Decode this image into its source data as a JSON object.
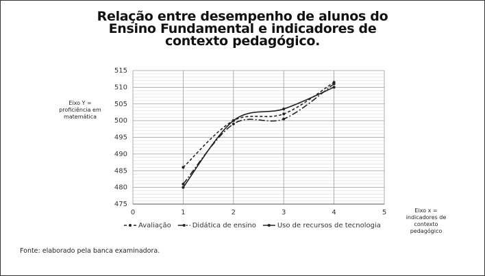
{
  "chart_data": {
    "type": "line",
    "title": "Relação entre desempenho de alunos do Ensino Fundamental e indicadores de contexto pedagógico.",
    "y_label": "Eixo Y = proficiência em matemática",
    "x_label": "Eixo x = indicadores de contexto pedagógico",
    "source": "Fonte: elaborado pela banca examinadora.",
    "x": [
      1,
      2,
      3,
      4
    ],
    "series": [
      {
        "name": "Avaliação",
        "color": "#222222",
        "dash": "dashed",
        "values": [
          486,
          500,
          502,
          511.5
        ]
      },
      {
        "name": "Didática de ensino",
        "color": "#222222",
        "dash": "dashdot",
        "values": [
          481,
          499,
          500.5,
          511
        ]
      },
      {
        "name": "Uso de recursos de tecnologia",
        "color": "#222222",
        "dash": "solid",
        "values": [
          480,
          500,
          503.5,
          510
        ]
      }
    ],
    "xlim": [
      0,
      5
    ],
    "xticks": [
      0,
      1,
      2,
      3,
      4,
      5
    ],
    "ylim": [
      475,
      515
    ],
    "yticks": [
      475,
      480,
      485,
      490,
      495,
      500,
      505,
      510,
      515
    ],
    "grid": true,
    "legend": "bottom"
  }
}
